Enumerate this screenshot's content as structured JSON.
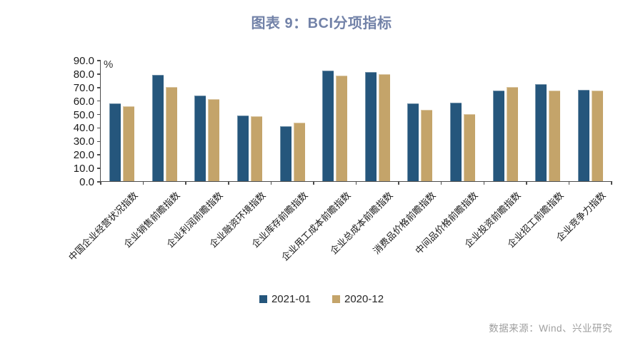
{
  "title": "图表 9：BCI分项指标",
  "source_note": "数据来源：Wind、兴业研究",
  "colors": {
    "title": "#7282A8",
    "axis": "#4d4d4d",
    "series_blue": "#25567C",
    "series_tan": "#C4A46A",
    "source_text": "#9e9e9e"
  },
  "chart_data": {
    "type": "bar",
    "title": "图表 9：BCI分项指标",
    "unit_label": "%",
    "grid": false,
    "legend_position": "bottom",
    "ylim": [
      0,
      90
    ],
    "ytick_step": 10,
    "yticks": [
      "90.0",
      "80.0",
      "70.0",
      "60.0",
      "50.0",
      "40.0",
      "30.0",
      "20.0",
      "10.0",
      "0.0"
    ],
    "categories": [
      "中国企业经营状况指数",
      "企业销售前瞻指数",
      "企业利润前瞻指数",
      "企业融资环境指数",
      "企业库存前瞻指数",
      "企业用工成本前瞻指数",
      "企业总成本前瞻指数",
      "消费品价格前瞻指数",
      "中间品价格前瞻指数",
      "企业投资前瞻指数",
      "企业招工前瞻指数",
      "企业竞争力指数"
    ],
    "series": [
      {
        "name": "2021-01",
        "color": "#25567C",
        "values": [
          57.5,
          79.0,
          63.5,
          48.5,
          41.0,
          82.0,
          81.0,
          57.5,
          58.0,
          67.5,
          72.0,
          68.0
        ]
      },
      {
        "name": "2020-12",
        "color": "#C4A46A",
        "values": [
          55.5,
          70.0,
          61.0,
          48.0,
          43.5,
          78.5,
          79.5,
          53.0,
          50.0,
          70.0,
          67.5,
          67.0
        ]
      }
    ]
  }
}
